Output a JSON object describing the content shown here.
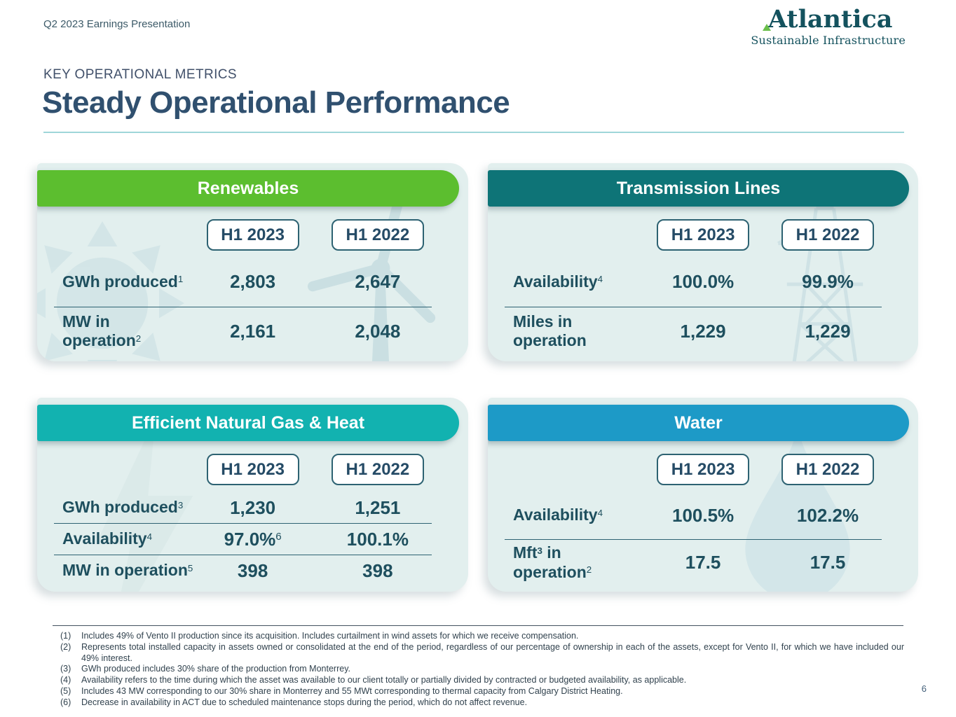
{
  "slide": {
    "kicker": "Q2 2023 Earnings Presentation",
    "eyebrow": "KEY OPERATIONAL METRICS",
    "title": "Steady Operational Performance",
    "page_number": "6"
  },
  "logo": {
    "name": "Atlantica",
    "tagline": "Sustainable Infrastructure",
    "text_color": "#14525e",
    "mark_color": "#6abf4b"
  },
  "column_headers": [
    "H1 2023",
    "H1 2022"
  ],
  "cards": [
    {
      "id": "renewables",
      "title": "Renewables",
      "band_color": "#5cbe2f",
      "watermarks": [
        "wind-turbine",
        "sun"
      ],
      "rows": [
        {
          "label_lines": [
            [
              {
                "t": "GWh produced"
              },
              {
                "t": "1",
                "sup": true
              }
            ]
          ],
          "values": [
            "2,803",
            "2,647"
          ]
        },
        {
          "label_lines": [
            [
              {
                "t": "MW in"
              }
            ],
            [
              {
                "t": "operation"
              },
              {
                "t": "2",
                "sup": true
              }
            ]
          ],
          "values": [
            "2,161",
            "2,048"
          ]
        }
      ]
    },
    {
      "id": "transmission",
      "title": "Transmission Lines",
      "band_color": "#0e7477",
      "watermarks": [
        "pylon"
      ],
      "rows": [
        {
          "label_lines": [
            [
              {
                "t": "Availability"
              },
              {
                "t": "4",
                "sup": true
              }
            ]
          ],
          "values": [
            "100.0%",
            "99.9%"
          ]
        },
        {
          "label_lines": [
            [
              {
                "t": "Miles in"
              }
            ],
            [
              {
                "t": "operation"
              }
            ]
          ],
          "values": [
            "1,229",
            "1,229"
          ]
        }
      ]
    },
    {
      "id": "gas",
      "title": "Efficient Natural Gas & Heat",
      "band_color": "#12b2b0",
      "watermarks": [
        "lightning-bolt"
      ],
      "rows": [
        {
          "label_lines": [
            [
              {
                "t": "GWh produced"
              },
              {
                "t": "3",
                "sup": true
              }
            ]
          ],
          "values": [
            "1,230",
            "1,251"
          ]
        },
        {
          "label_lines": [
            [
              {
                "t": "Availability"
              },
              {
                "t": "4",
                "sup": true
              }
            ]
          ],
          "values": [
            {
              "v": "97.0%",
              "sup": "6"
            },
            "100.1%"
          ]
        },
        {
          "label_lines": [
            [
              {
                "t": "MW in operation"
              },
              {
                "t": "5",
                "sup": true
              }
            ]
          ],
          "values": [
            "398",
            "398"
          ]
        }
      ]
    },
    {
      "id": "water",
      "title": "Water",
      "band_color": "#1d9ac7",
      "watermarks": [
        "water-drop"
      ],
      "rows": [
        {
          "label_lines": [
            [
              {
                "t": "Availability"
              },
              {
                "t": "4",
                "sup": true
              }
            ]
          ],
          "values": [
            "100.5%",
            "102.2%"
          ]
        },
        {
          "label_lines": [
            [
              {
                "t": "Mft"
              },
              {
                "t": "3",
                "sup": true,
                "b": true
              },
              {
                "t": " in"
              }
            ],
            [
              {
                "t": "operation"
              },
              {
                "t": "2",
                "sup": true
              }
            ]
          ],
          "values": [
            "17.5",
            "17.5"
          ]
        }
      ]
    }
  ],
  "footnotes": [
    {
      "num": "(1)",
      "text": "Includes 49% of Vento II production since its acquisition. Includes curtailment in wind assets for which we receive compensation."
    },
    {
      "num": "(2)",
      "text": "Represents total installed capacity in assets owned or consolidated at the end of the period, regardless of our percentage of ownership in each of the assets, except for Vento II, for which we have included our 49% interest."
    },
    {
      "num": "(3)",
      "text": "GWh produced includes 30% share of the production from Monterrey."
    },
    {
      "num": "(4)",
      "text": "Availability refers to the time during which the asset was available to our client totally or partially divided by contracted or budgeted availability, as applicable."
    },
    {
      "num": "(5)",
      "text": "Includes 43 MW corresponding to our 30% share in Monterrey and 55 MWt corresponding to thermal capacity from Calgary District Heating."
    },
    {
      "num": "(6)",
      "text": "Decrease in availability in ACT due to scheduled maintenance stops during the period, which do not affect revenue."
    }
  ],
  "colors": {
    "card_background": "#e2efee",
    "metric_text": "#1e4f5e",
    "title_text": "#30506f",
    "title_underline": "#9fd6d9",
    "column_box_border": "#2d6272",
    "divider": "#2d6272"
  }
}
